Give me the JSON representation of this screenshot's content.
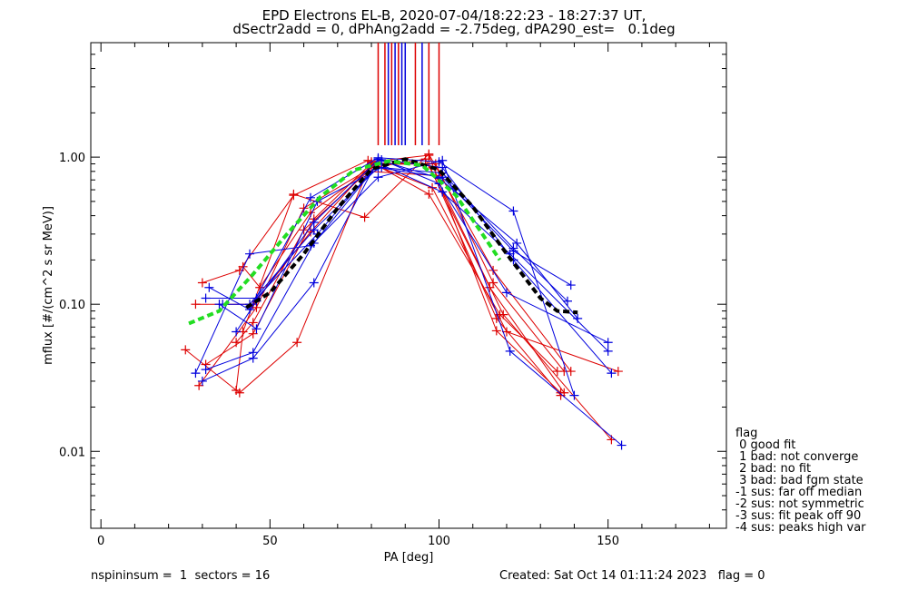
{
  "title_line1": "EPD Electrons EL-B, 2020-07-04/18:22:23 - 18:27:37 UT,",
  "title_line2": "dSectr2add = 0, dPhAng2add = -2.75deg, dPA290_est=   0.1deg",
  "footer_left": "nspininsum =  1  sectors = 16",
  "footer_right": "Created: Sat Oct 14 01:11:24 2023   flag = 0",
  "legend": {
    "title": "flag",
    "items": [
      " 0 good fit",
      " 1 bad: not converge",
      " 2 bad: no fit",
      " 3 bad: bad fgm state",
      "-1 sus: far off median",
      "-2 sus: not symmetric",
      "-3 sus: fit peak off 90",
      "-4 sus: peaks high var"
    ]
  },
  "colors": {
    "red": "#dd0000",
    "blue": "#0000dd",
    "black": "#000000",
    "green": "#22dd22"
  },
  "chart_data": {
    "type": "line",
    "xlabel": "PA [deg]",
    "ylabel": "mflux [#/(cm^2 s sr MeV)]",
    "xlim": [
      -3,
      185
    ],
    "ylim": [
      0.003,
      6
    ],
    "ylog": true,
    "xticks": [
      0,
      50,
      100,
      150
    ],
    "yticks": [
      {
        "value": 0.01,
        "label": "0.01"
      },
      {
        "value": 0.1,
        "label": "0.10"
      },
      {
        "value": 1.0,
        "label": "1.00"
      }
    ],
    "peak_markers": [
      {
        "x": 82,
        "color": "red"
      },
      {
        "x": 84,
        "color": "red"
      },
      {
        "x": 85,
        "color": "blue"
      },
      {
        "x": 86,
        "color": "red"
      },
      {
        "x": 87,
        "color": "blue"
      },
      {
        "x": 88,
        "color": "red"
      },
      {
        "x": 89,
        "color": "blue"
      },
      {
        "x": 90,
        "color": "blue"
      },
      {
        "x": 93,
        "color": "red"
      },
      {
        "x": 95,
        "color": "blue"
      },
      {
        "x": 97,
        "color": "red"
      },
      {
        "x": 100,
        "color": "red"
      }
    ],
    "series": [
      {
        "color": "red",
        "x": [
          25,
          41,
          58,
          80,
          97,
          117,
          136
        ],
        "y": [
          0.049,
          0.025,
          0.055,
          0.93,
          1.03,
          0.066,
          0.025
        ]
      },
      {
        "color": "red",
        "x": [
          28,
          45,
          62,
          80,
          97,
          117,
          136
        ],
        "y": [
          0.1,
          0.1,
          0.31,
          0.89,
          0.9,
          0.08,
          0.024
        ]
      },
      {
        "color": "red",
        "x": [
          29,
          46,
          60,
          80,
          96,
          115,
          137
        ],
        "y": [
          0.028,
          0.095,
          0.45,
          0.85,
          0.97,
          0.13,
          0.025
        ]
      },
      {
        "color": "red",
        "x": [
          30,
          41,
          57,
          79,
          97,
          118,
          135
        ],
        "y": [
          0.14,
          0.17,
          0.55,
          0.95,
          0.56,
          0.085,
          0.035
        ]
      },
      {
        "color": "red",
        "x": [
          31,
          45,
          63,
          80,
          99,
          116,
          137
        ],
        "y": [
          0.039,
          0.063,
          0.38,
          0.91,
          0.9,
          0.14,
          0.035
        ]
      },
      {
        "color": "red",
        "x": [
          40,
          42,
          57,
          78,
          97,
          116,
          139
        ],
        "y": [
          0.026,
          0.065,
          0.56,
          0.39,
          1.05,
          0.17,
          0.035
        ]
      },
      {
        "color": "red",
        "x": [
          40,
          45,
          60,
          79,
          99,
          119,
          151
        ],
        "y": [
          0.055,
          0.075,
          0.32,
          0.8,
          0.75,
          0.085,
          0.012
        ]
      },
      {
        "color": "red",
        "x": [
          42,
          47,
          62,
          81,
          98,
          120,
          153
        ],
        "y": [
          0.18,
          0.13,
          0.42,
          0.88,
          0.62,
          0.065,
          0.035
        ]
      },
      {
        "color": "blue",
        "x": [
          28,
          44,
          62,
          82,
          101,
          121,
          154
        ],
        "y": [
          0.034,
          0.22,
          0.25,
          0.73,
          0.95,
          0.048,
          0.011
        ]
      },
      {
        "color": "blue",
        "x": [
          30,
          45,
          63,
          82,
          101,
          122,
          151
        ],
        "y": [
          0.03,
          0.043,
          0.14,
          0.97,
          0.85,
          0.2,
          0.034
        ]
      },
      {
        "color": "blue",
        "x": [
          31,
          45,
          63,
          83,
          100,
          120,
          150
        ],
        "y": [
          0.036,
          0.047,
          0.26,
          0.96,
          0.66,
          0.12,
          0.055
        ]
      },
      {
        "color": "blue",
        "x": [
          31,
          46,
          64,
          82,
          101,
          121,
          150
        ],
        "y": [
          0.11,
          0.11,
          0.3,
          0.91,
          0.58,
          0.22,
          0.048
        ]
      },
      {
        "color": "blue",
        "x": [
          32,
          44,
          62,
          82,
          100,
          122,
          140
        ],
        "y": [
          0.13,
          0.092,
          0.53,
          0.99,
          0.93,
          0.43,
          0.024
        ]
      },
      {
        "color": "blue",
        "x": [
          35,
          46,
          64,
          83,
          101,
          122,
          138
        ],
        "y": [
          0.1,
          0.068,
          0.5,
          0.85,
          0.78,
          0.24,
          0.105
        ]
      },
      {
        "color": "blue",
        "x": [
          36,
          44,
          63,
          82,
          101,
          122,
          139
        ],
        "y": [
          0.1,
          0.1,
          0.32,
          0.85,
          0.73,
          0.23,
          0.135
        ]
      },
      {
        "color": "blue",
        "x": [
          40,
          46,
          63,
          82,
          100,
          123,
          141
        ],
        "y": [
          0.065,
          0.105,
          0.36,
          0.96,
          0.72,
          0.26,
          0.08
        ]
      },
      {
        "color": "black",
        "dashed": true,
        "x": [
          43,
          50,
          60,
          70,
          80,
          90,
          100,
          110,
          120,
          130,
          135,
          141
        ],
        "y": [
          0.095,
          0.12,
          0.22,
          0.45,
          0.83,
          0.97,
          0.82,
          0.46,
          0.22,
          0.11,
          0.09,
          0.088
        ]
      },
      {
        "color": "green",
        "dashed": true,
        "x": [
          26,
          35,
          45,
          55,
          65,
          75,
          85,
          95,
          105,
          112,
          118
        ],
        "y": [
          0.074,
          0.09,
          0.16,
          0.3,
          0.54,
          0.82,
          0.94,
          0.88,
          0.55,
          0.32,
          0.2
        ]
      }
    ]
  }
}
